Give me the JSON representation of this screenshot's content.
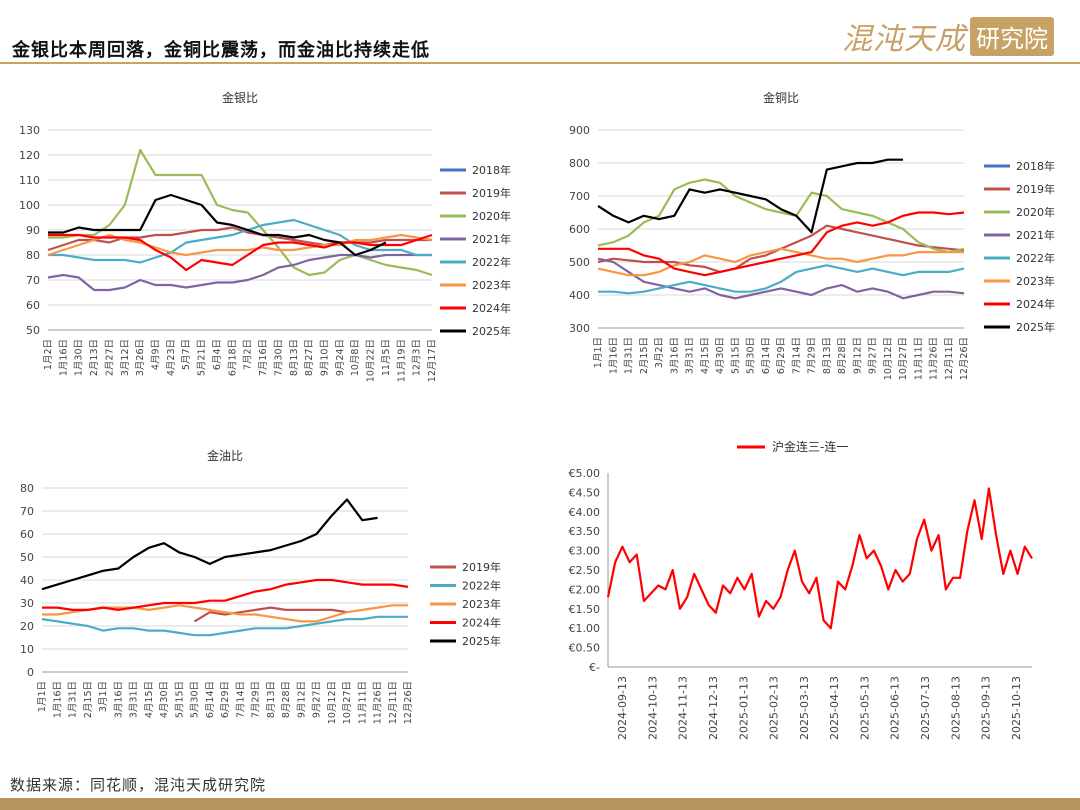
{
  "header": {
    "title": "金银比本周回落，金铜比震荡，而金油比持续走低",
    "brand_a": "混沌天成",
    "brand_b": "研究院"
  },
  "footer": {
    "source": "数据来源：同花顺，混沌天成研究院"
  },
  "colors": {
    "2018年": "#4472c4",
    "2019年": "#c0504d",
    "2020年": "#9bbb59",
    "2021年": "#8064a2",
    "2022年": "#4bacc6",
    "2023年": "#f79646",
    "2024年": "#ff0000",
    "2025年": "#000000",
    "accent": "#c8a165"
  },
  "chart_data": [
    {
      "id": "gold-silver",
      "type": "line",
      "title": "金银比",
      "ylim": [
        50,
        130
      ],
      "yticks": [
        "130",
        "120",
        "110",
        "100",
        "90",
        "80",
        "70",
        "60",
        "50"
      ],
      "xticks": [
        "1月2日",
        "1月16日",
        "1月30日",
        "2月13日",
        "2月27日",
        "3月12日",
        "3月26日",
        "4月9日",
        "4月23日",
        "5月7日",
        "5月21日",
        "6月4日",
        "6月18日",
        "7月2日",
        "7月16日",
        "7月30日",
        "8月13日",
        "8月27日",
        "9月10日",
        "9月24日",
        "10月8日",
        "10月22日",
        "11月5日",
        "11月19日",
        "12月3日",
        "12月17日"
      ],
      "series": [
        {
          "name": "2018年",
          "values": [
            null,
            null,
            null,
            null,
            null,
            null,
            null,
            null,
            null,
            null,
            null,
            null,
            null,
            null,
            null,
            null,
            null,
            null,
            null,
            null,
            null,
            null,
            null,
            null,
            null,
            null
          ]
        },
        {
          "name": "2019年",
          "values": [
            82,
            84,
            86,
            86,
            85,
            87,
            87,
            88,
            88,
            89,
            90,
            90,
            91,
            89,
            88,
            87,
            86,
            85,
            84,
            85,
            85,
            85,
            86,
            86,
            86,
            86
          ]
        },
        {
          "name": "2020年",
          "values": [
            87,
            87,
            88,
            88,
            92,
            100,
            122,
            112,
            112,
            112,
            112,
            100,
            98,
            97,
            90,
            83,
            75,
            72,
            73,
            78,
            80,
            78,
            76,
            75,
            74,
            72
          ]
        },
        {
          "name": "2021年",
          "values": [
            71,
            72,
            71,
            66,
            66,
            67,
            70,
            68,
            68,
            67,
            68,
            69,
            69,
            70,
            72,
            75,
            76,
            78,
            79,
            80,
            80,
            79,
            80,
            80,
            80,
            80
          ]
        },
        {
          "name": "2022年",
          "values": [
            80,
            80,
            79,
            78,
            78,
            78,
            77,
            79,
            81,
            85,
            86,
            87,
            88,
            90,
            92,
            93,
            94,
            92,
            90,
            88,
            84,
            82,
            82,
            82,
            80,
            80
          ]
        },
        {
          "name": "2023年",
          "values": [
            80,
            82,
            84,
            86,
            88,
            86,
            85,
            83,
            81,
            80,
            81,
            82,
            82,
            82,
            83,
            82,
            82,
            83,
            84,
            84,
            86,
            86,
            87,
            88,
            87,
            86
          ]
        },
        {
          "name": "2024年",
          "values": [
            88,
            88,
            88,
            87,
            87,
            87,
            86,
            82,
            79,
            74,
            78,
            77,
            76,
            80,
            84,
            85,
            85,
            84,
            83,
            85,
            85,
            84,
            84,
            84,
            86,
            88
          ]
        },
        {
          "name": "2025年",
          "values": [
            89,
            89,
            91,
            90,
            90,
            90,
            90,
            102,
            104,
            102,
            100,
            93,
            92,
            90,
            88,
            88,
            87,
            88,
            86,
            85,
            80,
            82,
            85,
            null,
            null,
            null
          ]
        }
      ]
    },
    {
      "id": "gold-copper",
      "type": "line",
      "title": "金铜比",
      "ylim": [
        300,
        900
      ],
      "yticks": [
        "900",
        "800",
        "700",
        "600",
        "500",
        "400",
        "300"
      ],
      "xticks": [
        "1月1日",
        "1月16日",
        "1月31日",
        "2月15日",
        "3月2日",
        "3月16日",
        "3月31日",
        "4月15日",
        "4月30日",
        "5月15日",
        "5月30日",
        "6月14日",
        "6月29日",
        "7月14日",
        "7月29日",
        "8月13日",
        "8月28日",
        "9月12日",
        "9月27日",
        "10月12日",
        "10月27日",
        "11月11日",
        "11月26日",
        "12月11日",
        "12月26日"
      ],
      "series": [
        {
          "name": "2018年",
          "values": [
            null,
            null,
            null,
            null,
            null,
            null,
            null,
            null,
            null,
            null,
            null,
            null,
            null,
            null,
            null,
            null,
            null,
            null,
            null,
            null,
            null,
            null,
            null,
            null,
            null
          ]
        },
        {
          "name": "2019年",
          "values": [
            500,
            510,
            505,
            500,
            500,
            500,
            490,
            485,
            470,
            480,
            510,
            520,
            540,
            560,
            580,
            610,
            600,
            590,
            580,
            570,
            560,
            550,
            545,
            540,
            535
          ]
        },
        {
          "name": "2020年",
          "values": [
            550,
            560,
            580,
            620,
            640,
            720,
            740,
            750,
            740,
            700,
            680,
            660,
            650,
            640,
            710,
            700,
            660,
            650,
            640,
            620,
            600,
            560,
            540,
            530,
            540
          ]
        },
        {
          "name": "2021年",
          "values": [
            510,
            500,
            470,
            440,
            430,
            420,
            410,
            420,
            400,
            390,
            400,
            410,
            420,
            410,
            400,
            420,
            430,
            410,
            420,
            410,
            390,
            400,
            410,
            410,
            405
          ]
        },
        {
          "name": "2022年",
          "values": [
            410,
            410,
            405,
            410,
            420,
            430,
            440,
            430,
            420,
            410,
            410,
            420,
            440,
            470,
            480,
            490,
            480,
            470,
            480,
            470,
            460,
            470,
            470,
            470,
            480
          ]
        },
        {
          "name": "2023年",
          "values": [
            480,
            470,
            460,
            460,
            470,
            490,
            500,
            520,
            510,
            500,
            520,
            530,
            540,
            530,
            520,
            510,
            510,
            500,
            510,
            520,
            520,
            530,
            530,
            530,
            530
          ]
        },
        {
          "name": "2024年",
          "values": [
            540,
            540,
            540,
            520,
            510,
            480,
            470,
            460,
            470,
            480,
            490,
            500,
            510,
            520,
            530,
            590,
            610,
            620,
            610,
            620,
            640,
            650,
            650,
            645,
            650
          ]
        },
        {
          "name": "2025年",
          "values": [
            670,
            640,
            620,
            640,
            630,
            640,
            720,
            710,
            720,
            710,
            700,
            690,
            660,
            640,
            590,
            780,
            790,
            800,
            800,
            810,
            810,
            null,
            null,
            null,
            null
          ]
        }
      ]
    },
    {
      "id": "gold-oil",
      "type": "line",
      "title": "金油比",
      "ylim": [
        0,
        80
      ],
      "yticks": [
        "80",
        "70",
        "60",
        "50",
        "40",
        "30",
        "20",
        "10",
        "0"
      ],
      "xticks": [
        "1月1日",
        "1月16日",
        "1月31日",
        "2月15日",
        "3月1日",
        "3月16日",
        "3月31日",
        "4月15日",
        "4月30日",
        "5月15日",
        "5月30日",
        "6月14日",
        "6月29日",
        "7月14日",
        "7月29日",
        "8月13日",
        "8月28日",
        "9月12日",
        "9月27日",
        "10月12日",
        "10月27日",
        "11月11日",
        "11月26日",
        "12月11日",
        "12月26日"
      ],
      "series": [
        {
          "name": "2019年",
          "values": [
            null,
            null,
            null,
            null,
            null,
            null,
            null,
            null,
            null,
            null,
            22,
            26,
            25,
            26,
            27,
            28,
            27,
            27,
            27,
            27,
            26,
            null,
            null,
            null,
            null
          ]
        },
        {
          "name": "2022年",
          "values": [
            23,
            22,
            21,
            20,
            18,
            19,
            19,
            18,
            18,
            17,
            16,
            16,
            17,
            18,
            19,
            19,
            19,
            20,
            21,
            22,
            23,
            23,
            24,
            24,
            24
          ]
        },
        {
          "name": "2023年",
          "values": [
            25,
            25,
            26,
            27,
            28,
            28,
            28,
            27,
            28,
            29,
            28,
            27,
            26,
            25,
            25,
            24,
            23,
            22,
            22,
            24,
            26,
            27,
            28,
            29,
            29
          ]
        },
        {
          "name": "2024年",
          "values": [
            28,
            28,
            27,
            27,
            28,
            27,
            28,
            29,
            30,
            30,
            30,
            31,
            31,
            33,
            35,
            36,
            38,
            39,
            40,
            40,
            39,
            38,
            38,
            38,
            37
          ]
        },
        {
          "name": "2025年",
          "values": [
            36,
            38,
            40,
            42,
            44,
            45,
            50,
            54,
            56,
            52,
            50,
            47,
            50,
            51,
            52,
            53,
            55,
            57,
            60,
            68,
            75,
            66,
            67,
            null,
            null
          ]
        }
      ]
    },
    {
      "id": "hu-gold-spread",
      "type": "line",
      "title": "沪金连三-连一",
      "ylim": [
        0,
        5
      ],
      "yticks": [
        "€5.00",
        "€4.50",
        "€4.00",
        "€3.50",
        "€3.00",
        "€2.50",
        "€2.00",
        "€1.50",
        "€1.00",
        "€0.50",
        "€-"
      ],
      "xticks": [
        "2024-09-13",
        "2024-10-13",
        "2024-11-13",
        "2024-12-13",
        "2025-01-13",
        "2025-02-13",
        "2025-03-13",
        "2025-04-13",
        "2025-05-13",
        "2025-06-13",
        "2025-07-13",
        "2025-08-13",
        "2025-09-13",
        "2025-10-13"
      ],
      "series": [
        {
          "name": "沪金连三-连一",
          "values": [
            1.8,
            2.7,
            3.1,
            2.7,
            2.9,
            1.7,
            1.9,
            2.1,
            2.0,
            2.5,
            1.5,
            1.8,
            2.4,
            2.0,
            1.6,
            1.4,
            2.1,
            1.9,
            2.3,
            2.0,
            2.4,
            1.3,
            1.7,
            1.5,
            1.8,
            2.5,
            3.0,
            2.2,
            1.9,
            2.3,
            1.2,
            1.0,
            2.2,
            2.0,
            2.6,
            3.4,
            2.8,
            3.0,
            2.6,
            2.0,
            2.5,
            2.2,
            2.4,
            3.3,
            3.8,
            3.0,
            3.4,
            2.0,
            2.3,
            2.3,
            3.5,
            4.3,
            3.3,
            4.6,
            3.4,
            2.4,
            3.0,
            2.4,
            3.1,
            2.8
          ]
        }
      ]
    }
  ]
}
